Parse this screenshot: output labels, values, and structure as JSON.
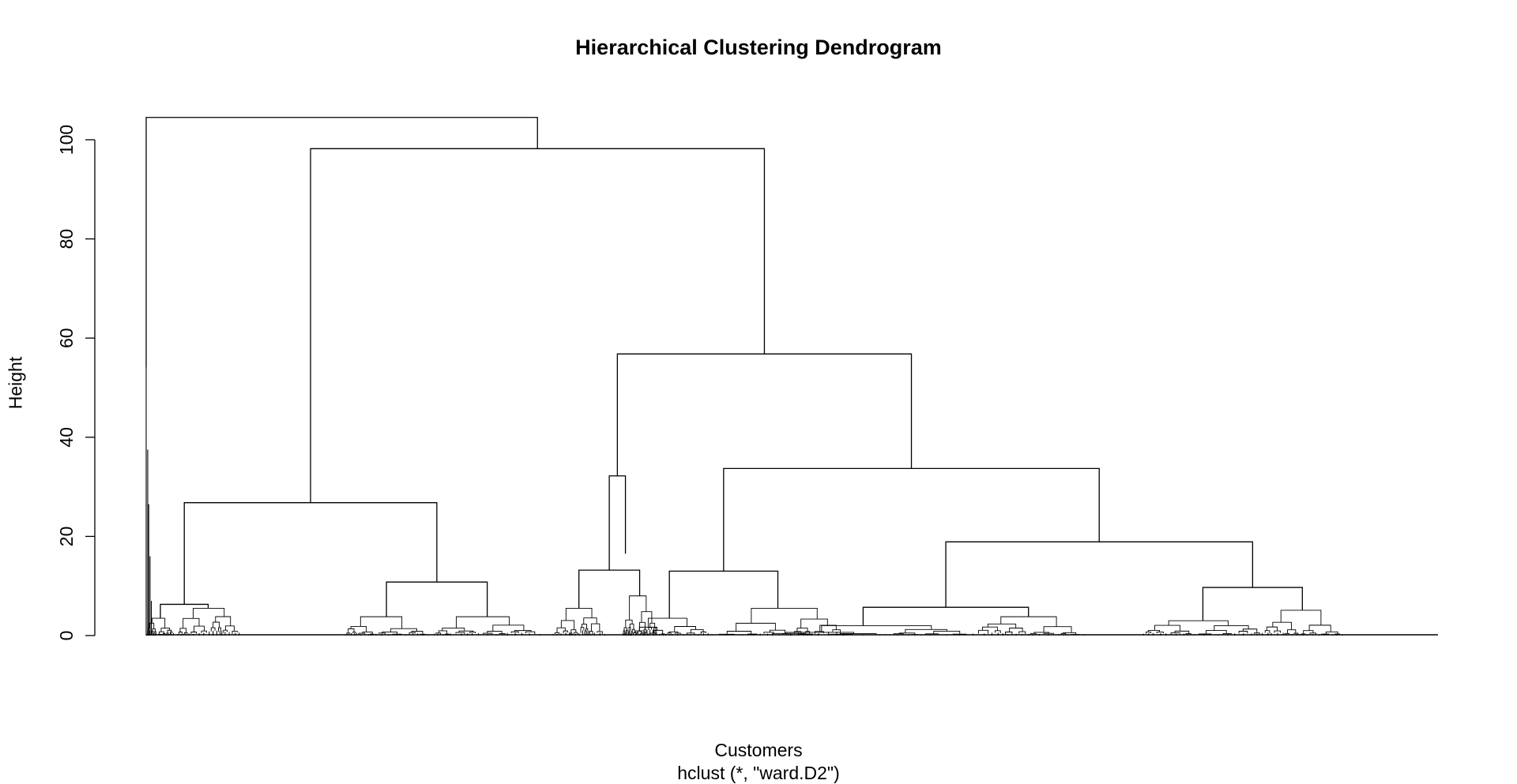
{
  "chart_data": {
    "type": "dendrogram",
    "title": "Hierarchical Clustering Dendrogram",
    "xlabel": "Customers",
    "sub": "hclust (*, \"ward.D2\")",
    "ylabel": "Height",
    "ylim": [
      0,
      108
    ],
    "yticks": [
      0,
      20,
      40,
      60,
      80,
      100
    ],
    "leaf_range": [
      0,
      1000
    ],
    "merges": [
      {
        "id": "root",
        "height": 104.5,
        "left": "A",
        "right": "B"
      },
      {
        "id": "B",
        "height": 98.2,
        "left": "C",
        "right": "D"
      },
      {
        "id": "D",
        "height": 56.8,
        "left": "E",
        "right": "F"
      },
      {
        "id": "F",
        "height": 33.7,
        "left": "G",
        "right": "H"
      },
      {
        "id": "C",
        "height": 26.8,
        "left": "C1",
        "right": "C2"
      },
      {
        "id": "E",
        "height": 32.2,
        "left": "E1",
        "right": "E2"
      },
      {
        "id": "H",
        "height": 18.9,
        "left": "H1",
        "right": "H2"
      },
      {
        "id": "G",
        "height": 13.0,
        "left": "G1",
        "right": "G2"
      },
      {
        "id": "E1",
        "height": 13.2,
        "left": "E1a",
        "right": "E1b"
      },
      {
        "id": "C2",
        "height": 10.8,
        "left": "C2a",
        "right": "C2b"
      },
      {
        "id": "H2",
        "height": 9.7,
        "left": "H2a",
        "right": "H2b"
      },
      {
        "id": "C1",
        "height": 6.3,
        "left": "C1a",
        "right": "C1b"
      },
      {
        "id": "H1",
        "height": 5.7,
        "left": "H1a",
        "right": "H1b"
      }
    ]
  }
}
